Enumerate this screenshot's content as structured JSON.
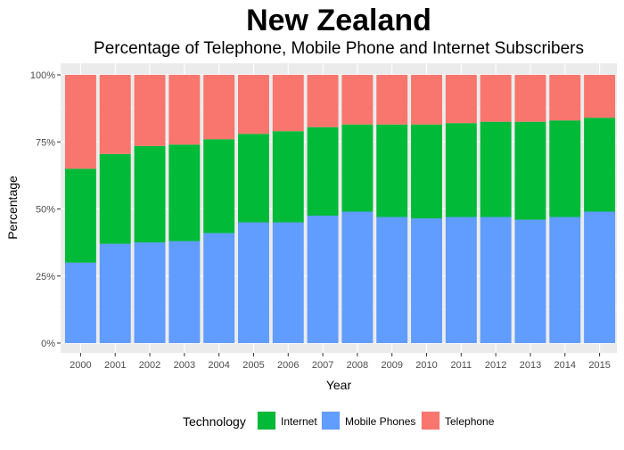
{
  "chart_data": {
    "type": "bar",
    "stacked": true,
    "normalized": true,
    "title": "New Zealand",
    "subtitle": "Percentage of Telephone, Mobile Phone and Internet Subscribers",
    "xlabel": "Year",
    "ylabel": "Percentage",
    "ylim": [
      0,
      1
    ],
    "y_ticks": [
      "0%",
      "25%",
      "50%",
      "75%",
      "100%"
    ],
    "grid": true,
    "legend_position": "bottom",
    "legend_title": "Technology",
    "categories": [
      "2000",
      "2001",
      "2002",
      "2003",
      "2004",
      "2005",
      "2006",
      "2007",
      "2008",
      "2009",
      "2010",
      "2011",
      "2012",
      "2013",
      "2014",
      "2015"
    ],
    "series": [
      {
        "name": "Mobile Phones",
        "color": "#619CFF",
        "values": [
          0.3,
          0.37,
          0.375,
          0.38,
          0.41,
          0.45,
          0.45,
          0.475,
          0.49,
          0.47,
          0.465,
          0.47,
          0.47,
          0.46,
          0.47,
          0.49
        ]
      },
      {
        "name": "Internet",
        "color": "#00BA38",
        "values": [
          0.35,
          0.335,
          0.36,
          0.36,
          0.35,
          0.33,
          0.34,
          0.33,
          0.325,
          0.345,
          0.35,
          0.35,
          0.355,
          0.365,
          0.36,
          0.35
        ]
      },
      {
        "name": "Telephone",
        "color": "#F8766D",
        "values": [
          0.35,
          0.295,
          0.265,
          0.26,
          0.24,
          0.22,
          0.21,
          0.195,
          0.185,
          0.185,
          0.185,
          0.18,
          0.175,
          0.175,
          0.17,
          0.16
        ]
      }
    ],
    "legend_order": [
      "Internet",
      "Mobile Phones",
      "Telephone"
    ]
  }
}
